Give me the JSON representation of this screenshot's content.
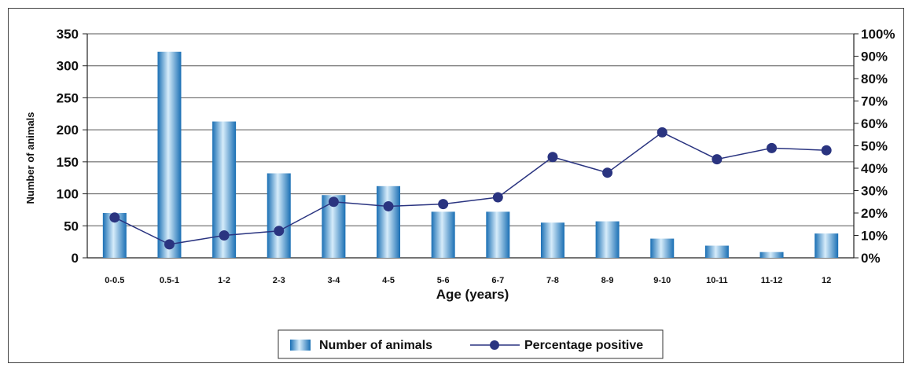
{
  "chart_data": {
    "type": "bar",
    "categories": [
      "0-0.5",
      "0.5-1",
      "1-2",
      "2-3",
      "3-4",
      "4-5",
      "5-6",
      "6-7",
      "7-8",
      "8-9",
      "9-10",
      "10-11",
      "11-12",
      "12"
    ],
    "series": [
      {
        "name": "Number of animals",
        "type": "bar",
        "axis": "left",
        "values": [
          70,
          322,
          213,
          132,
          98,
          112,
          72,
          72,
          55,
          57,
          30,
          19,
          9,
          38
        ]
      },
      {
        "name": "Percentage positive",
        "type": "line",
        "axis": "right",
        "values": [
          18,
          6,
          10,
          12,
          25,
          23,
          24,
          27,
          45,
          38,
          56,
          44,
          49,
          48
        ]
      }
    ],
    "title": "",
    "xlabel": "Age (years)",
    "ylabel": "Number of animals",
    "ylim": [
      0,
      350
    ],
    "yticks": [
      "0",
      "50",
      "100",
      "150",
      "200",
      "250",
      "300",
      "350"
    ],
    "y2lim": [
      0,
      100
    ],
    "y2ticks": [
      "0%",
      "10%",
      "20%",
      "30%",
      "40%",
      "50%",
      "60%",
      "70%",
      "80%",
      "90%",
      "100%"
    ],
    "grid": true,
    "legend": "bottom-center",
    "colors": {
      "bar_dark": "#1a6fb4",
      "bar_light": "#d6ecfa",
      "line": "#2a3480",
      "marker": "#2a3480"
    }
  }
}
